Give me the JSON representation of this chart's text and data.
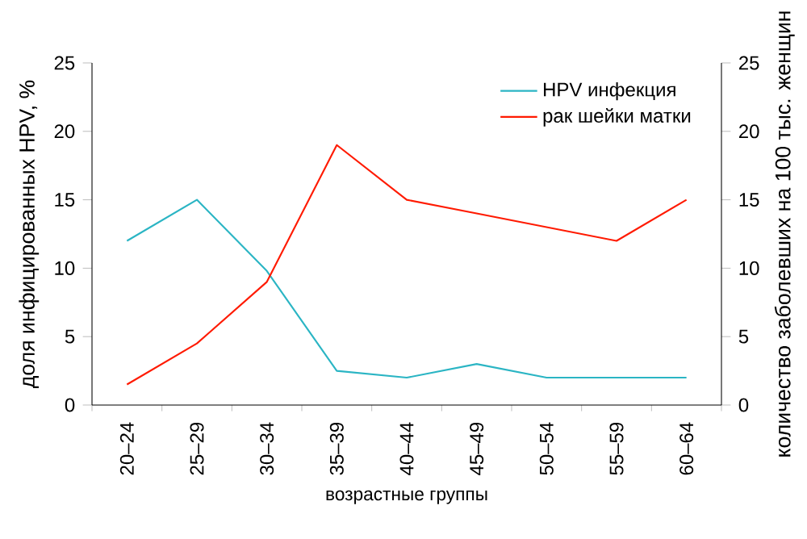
{
  "chart_data": {
    "type": "line",
    "xlabel": "возрастные группы",
    "ylabel": "доля инфицированных HPV, %",
    "y2label": "количество заболевших на 100 тыс. женщин",
    "categories": [
      "20–24",
      "25–29",
      "30–34",
      "35–39",
      "40–44",
      "45–49",
      "50–54",
      "55–59",
      "60–64"
    ],
    "series": [
      {
        "name": "HPV инфекция",
        "color": "#2bb5c4",
        "values": [
          12,
          15,
          9.8,
          2.5,
          2,
          3,
          2,
          2,
          2
        ]
      },
      {
        "name": "рак шейки матки",
        "color": "#ff1a00",
        "axis": "y2",
        "values": [
          1.5,
          4.5,
          9,
          19,
          15,
          14,
          13,
          12,
          15
        ]
      }
    ],
    "ylim": [
      0,
      25
    ],
    "yticks": [
      0,
      5,
      10,
      15,
      20,
      25
    ],
    "y2lim": [
      0,
      25
    ],
    "y2ticks": [
      0,
      5,
      10,
      15,
      20,
      25
    ],
    "legend": "top right"
  }
}
